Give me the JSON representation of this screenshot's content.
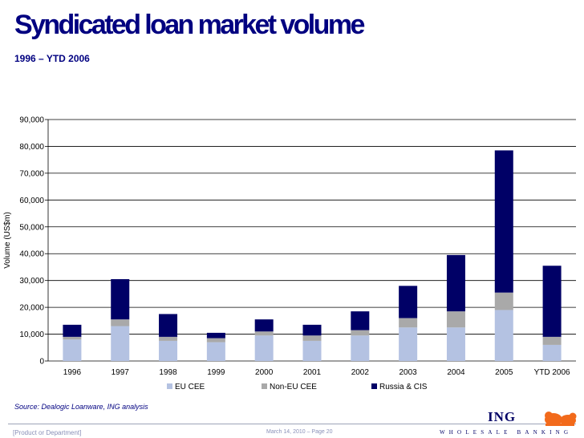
{
  "title": "Syndicated loan market volume",
  "subtitle": "1996 – YTD 2006",
  "source": "Source: Dealogic Loanware, ING analysis",
  "footer": {
    "department": "[Product or Department]",
    "date_page": "March 14, 2010 – Page 20",
    "logo_text": "ING",
    "logo_tagline": "WHOLESALE BANKING"
  },
  "colors": {
    "title": "#000080",
    "eu_cee": "#b4c2e2",
    "non_eu_cee": "#a9a9a9",
    "russia_cis": "#000066"
  },
  "chart_data": {
    "type": "bar",
    "stacked": true,
    "categories": [
      "1996",
      "1997",
      "1998",
      "1999",
      "2000",
      "2001",
      "2002",
      "2003",
      "2004",
      "2005",
      "YTD 2006"
    ],
    "series": [
      {
        "name": "EU CEE",
        "color": "#b4c2e2",
        "values": [
          8000,
          13000,
          7500,
          7000,
          9500,
          7500,
          9500,
          12500,
          12500,
          19000,
          6000
        ]
      },
      {
        "name": "Non-EU CEE",
        "color": "#a9a9a9",
        "values": [
          1000,
          2500,
          1500,
          1500,
          1500,
          2000,
          2000,
          3500,
          6000,
          6500,
          3000
        ]
      },
      {
        "name": "Russia & CIS",
        "color": "#000066",
        "values": [
          4500,
          15000,
          8500,
          2000,
          4500,
          4000,
          7000,
          12000,
          21000,
          53000,
          26500
        ]
      }
    ],
    "ylabel": "Volume (US$m)",
    "xlabel": "",
    "ylim": [
      0,
      90000
    ],
    "yticks": [
      "0",
      "10,000",
      "20,000",
      "30,000",
      "40,000",
      "50,000",
      "60,000",
      "70,000",
      "80,000",
      "90,000"
    ],
    "grid": "horizontal",
    "legend_position": "bottom"
  }
}
